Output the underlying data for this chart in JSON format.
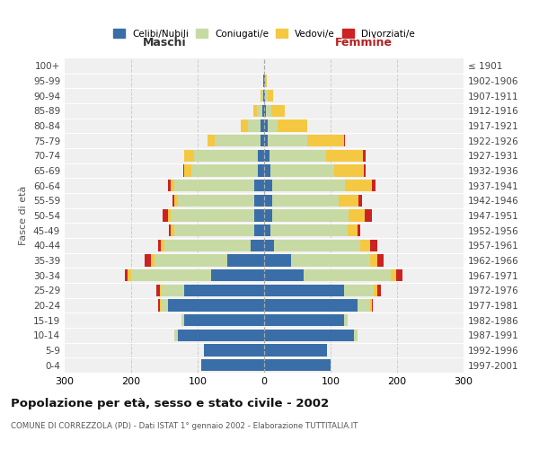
{
  "age_groups": [
    "0-4",
    "5-9",
    "10-14",
    "15-19",
    "20-24",
    "25-29",
    "30-34",
    "35-39",
    "40-44",
    "45-49",
    "50-54",
    "55-59",
    "60-64",
    "65-69",
    "70-74",
    "75-79",
    "80-84",
    "85-89",
    "90-94",
    "95-99",
    "100+"
  ],
  "birth_years": [
    "1997-2001",
    "1992-1996",
    "1987-1991",
    "1982-1986",
    "1977-1981",
    "1972-1976",
    "1967-1971",
    "1962-1966",
    "1957-1961",
    "1952-1956",
    "1947-1951",
    "1942-1946",
    "1937-1941",
    "1932-1936",
    "1927-1931",
    "1922-1926",
    "1917-1921",
    "1912-1916",
    "1907-1911",
    "1902-1906",
    "≤ 1901"
  ],
  "males": {
    "celibi": [
      95,
      90,
      130,
      120,
      145,
      120,
      80,
      55,
      20,
      15,
      15,
      15,
      15,
      10,
      10,
      5,
      5,
      3,
      2,
      1,
      0
    ],
    "coniugati": [
      0,
      0,
      5,
      5,
      10,
      35,
      120,
      110,
      130,
      120,
      125,
      115,
      120,
      100,
      95,
      70,
      20,
      8,
      2,
      1,
      0
    ],
    "vedovi": [
      0,
      0,
      0,
      0,
      2,
      2,
      5,
      5,
      5,
      5,
      5,
      5,
      5,
      10,
      15,
      10,
      10,
      5,
      2,
      0,
      0
    ],
    "divorziati": [
      0,
      0,
      0,
      0,
      3,
      5,
      5,
      10,
      5,
      3,
      8,
      3,
      5,
      2,
      0,
      0,
      0,
      0,
      0,
      0,
      0
    ]
  },
  "females": {
    "nubili": [
      100,
      95,
      135,
      120,
      140,
      120,
      60,
      40,
      15,
      10,
      12,
      12,
      12,
      10,
      8,
      5,
      5,
      3,
      2,
      1,
      0
    ],
    "coniugate": [
      0,
      0,
      5,
      5,
      20,
      45,
      130,
      120,
      130,
      115,
      115,
      100,
      110,
      95,
      85,
      60,
      15,
      8,
      3,
      1,
      0
    ],
    "vedove": [
      0,
      0,
      0,
      0,
      2,
      5,
      8,
      10,
      15,
      15,
      25,
      30,
      40,
      45,
      55,
      55,
      45,
      20,
      8,
      2,
      0
    ],
    "divorziate": [
      0,
      0,
      0,
      0,
      2,
      5,
      10,
      10,
      10,
      5,
      10,
      5,
      5,
      3,
      5,
      2,
      0,
      0,
      0,
      0,
      0
    ]
  },
  "colors": {
    "celibi": "#3a6ea8",
    "coniugati": "#c8daa4",
    "vedovi": "#f5c842",
    "divorziati": "#cc2222"
  },
  "legend_labels": [
    "Celibi/Nubili",
    "Coniugati/e",
    "Vedovi/e",
    "Divorziati/e"
  ],
  "legend_colors": [
    "#3a6ea8",
    "#c8daa4",
    "#f5c842",
    "#cc2222"
  ],
  "title": "Popolazione per età, sesso e stato civile - 2002",
  "subtitle": "COMUNE DI CORREZZOLA (PD) - Dati ISTAT 1° gennaio 2002 - Elaborazione TUTTITALIA.IT",
  "xlabel_left": "Maschi",
  "xlabel_right": "Femmine",
  "ylabel_left": "Fasce di età",
  "xlim": 300,
  "bg_color": "#f0f0f0",
  "grid_color": "#cccccc"
}
